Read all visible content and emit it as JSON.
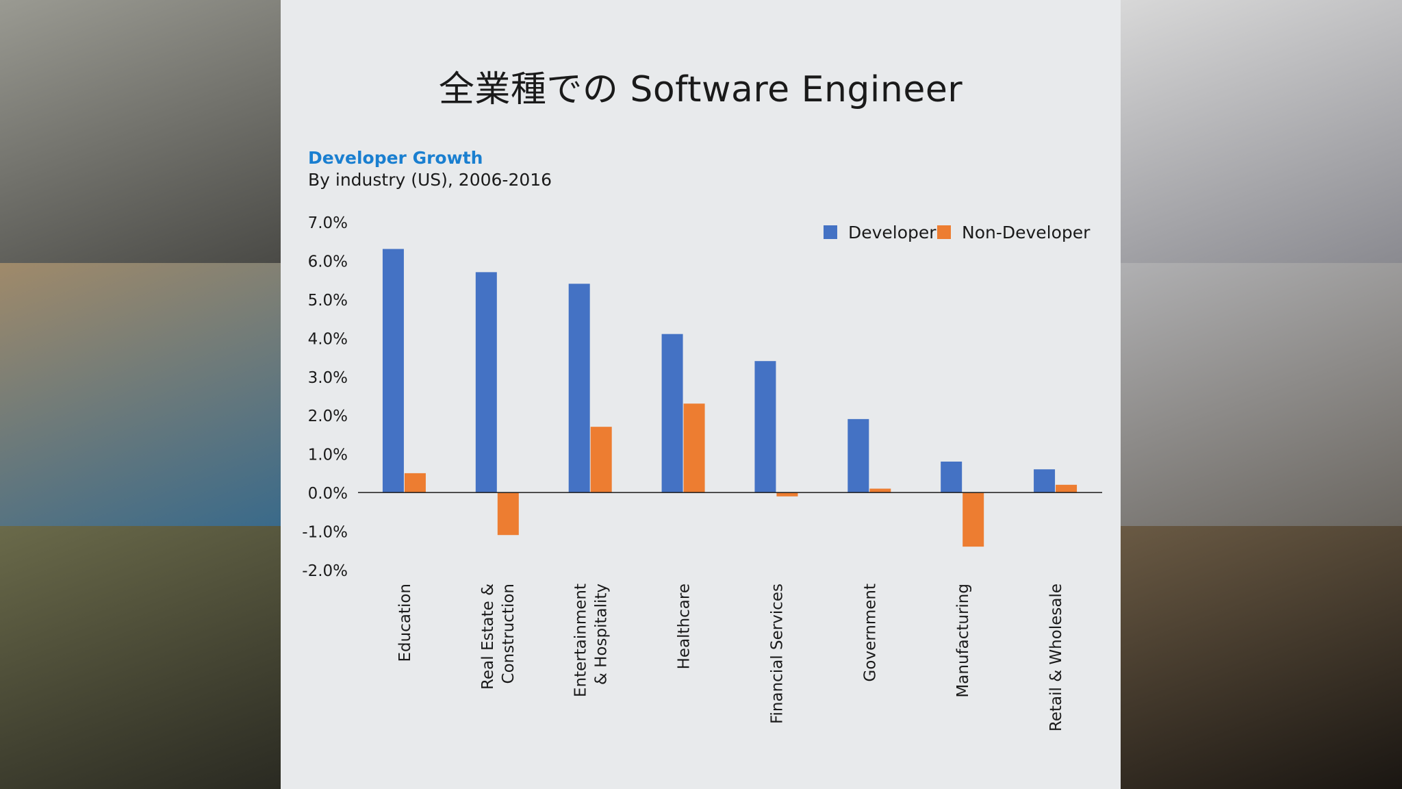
{
  "slide": {
    "title": "全業種での Software Engineer",
    "subtitle": "Developer Growth",
    "caption": "By industry (US), 2006-2016"
  },
  "photos": [
    {
      "name": "photo-food-worker",
      "colors": [
        "#9a9a92",
        "#4a4a46"
      ]
    },
    {
      "name": "photo-child-tablet",
      "colors": [
        "#a08a6a",
        "#3a6a8a"
      ]
    },
    {
      "name": "photo-hardhat-worker",
      "colors": [
        "#6a6a4a",
        "#2a2a22"
      ]
    },
    {
      "name": "photo-lab-scientist",
      "colors": [
        "#d8d8d8",
        "#8a8a90"
      ]
    },
    {
      "name": "photo-utility-technician",
      "colors": [
        "#b0b0b2",
        "#6a6660"
      ]
    },
    {
      "name": "photo-handheld-device",
      "colors": [
        "#6a5a44",
        "#1a1612"
      ]
    }
  ],
  "chart_data": {
    "type": "bar",
    "categories": [
      "Education",
      "Real Estate & Construction",
      "Entertainment & Hospitality",
      "Healthcare",
      "Financial Services",
      "Government",
      "Manufacturing",
      "Retail & Wholesale"
    ],
    "category_lines": [
      [
        "Education"
      ],
      [
        "Real Estate &",
        "Construction"
      ],
      [
        "Entertainment",
        "& Hospitality"
      ],
      [
        "Healthcare"
      ],
      [
        "Financial Services"
      ],
      [
        "Government"
      ],
      [
        "Manufacturing"
      ],
      [
        "Retail & Wholesale"
      ]
    ],
    "series": [
      {
        "name": "Developer",
        "color": "#4472c4",
        "values": [
          6.3,
          5.7,
          5.4,
          4.1,
          3.4,
          1.9,
          0.8,
          0.6
        ]
      },
      {
        "name": "Non-Developer",
        "color": "#ed7d31",
        "values": [
          0.5,
          -1.1,
          1.7,
          2.3,
          -0.1,
          0.1,
          -1.4,
          0.2
        ]
      }
    ],
    "ylim": [
      -2.0,
      7.0
    ],
    "yticks": [
      "7.0%",
      "6.0%",
      "5.0%",
      "4.0%",
      "3.0%",
      "2.0%",
      "1.0%",
      "0.0%",
      "-1.0%",
      "-2.0%"
    ],
    "ytick_values": [
      7,
      6,
      5,
      4,
      3,
      2,
      1,
      0,
      -1,
      -2
    ],
    "legend_position": "top-right",
    "grid": false
  }
}
